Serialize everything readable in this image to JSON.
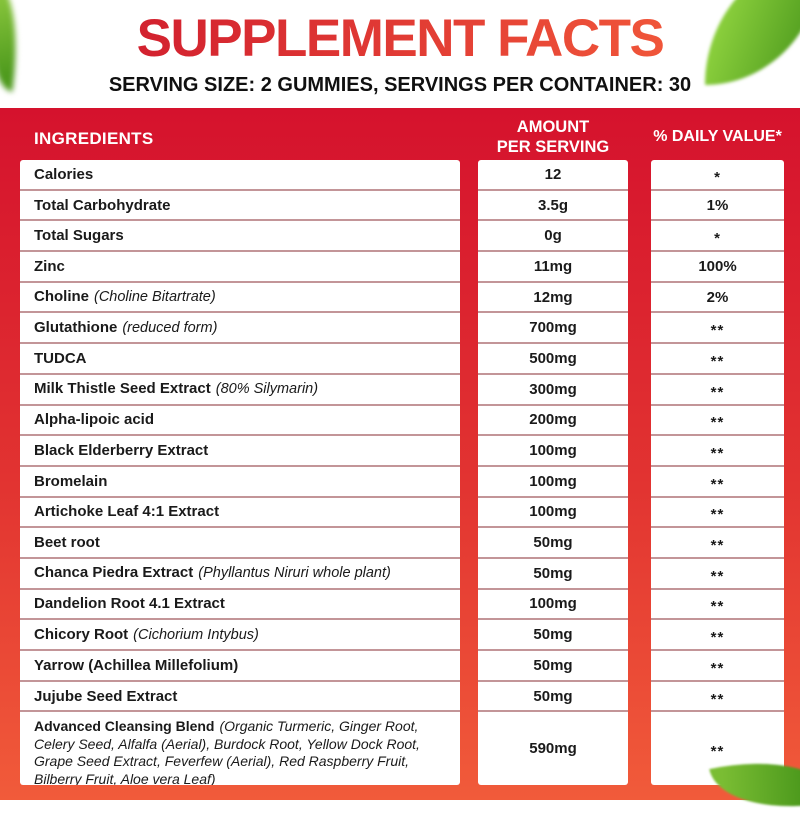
{
  "page": {
    "title": "SUPPLEMENT FACTS",
    "serving_line": "SERVING SIZE: 2 GUMMIES, SERVINGS PER CONTAINER: 30"
  },
  "colors": {
    "title_gradient_start": "#d01d2e",
    "title_gradient_end": "#f2593a",
    "table_gradient_top": "#d5122d",
    "table_gradient_bottom": "#f15b3a",
    "row_divider": "#c39598",
    "header_text": "#ffffff",
    "body_text": "#1a1a1a",
    "leaf_green": "#66b32e"
  },
  "decorations": {
    "leaves": [
      "top-left-leaf",
      "top-right-leaf",
      "bottom-right-leaf"
    ]
  },
  "table": {
    "headers": {
      "ingredients": "INGREDIENTS",
      "amount_line1": "AMOUNT",
      "amount_line2": "PER SERVING",
      "daily_value": "% DAILY VALUE*"
    },
    "rows": [
      {
        "name": "Calories",
        "note": "",
        "amount": "12",
        "dv": "*"
      },
      {
        "name": "Total Carbohydrate",
        "note": "",
        "amount": "3.5g",
        "dv": "1%"
      },
      {
        "name": "Total Sugars",
        "note": "",
        "amount": "0g",
        "dv": "*"
      },
      {
        "name": "Zinc",
        "note": "",
        "amount": "11mg",
        "dv": "100%"
      },
      {
        "name": "Choline",
        "note": "(Choline Bitartrate)",
        "amount": "12mg",
        "dv": "2%"
      },
      {
        "name": "Glutathione",
        "note": "(reduced form)",
        "amount": "700mg",
        "dv": "**"
      },
      {
        "name": "TUDCA",
        "note": "",
        "amount": "500mg",
        "dv": "**"
      },
      {
        "name": "Milk Thistle Seed Extract",
        "note": "(80% Silymarin)",
        "amount": "300mg",
        "dv": "**"
      },
      {
        "name": "Alpha-lipoic acid",
        "note": "",
        "amount": "200mg",
        "dv": "**"
      },
      {
        "name": "Black Elderberry Extract",
        "note": "",
        "amount": "100mg",
        "dv": "**"
      },
      {
        "name": "Bromelain",
        "note": "",
        "amount": "100mg",
        "dv": "**"
      },
      {
        "name": "Artichoke Leaf 4:1 Extract",
        "note": "",
        "amount": "100mg",
        "dv": "**"
      },
      {
        "name": "Beet root",
        "note": "",
        "amount": "50mg",
        "dv": "**"
      },
      {
        "name": "Chanca Piedra Extract",
        "note": "(Phyllantus Niruri whole plant)",
        "amount": "50mg",
        "dv": "**"
      },
      {
        "name": "Dandelion Root 4.1 Extract",
        "note": "",
        "amount": "100mg",
        "dv": "**"
      },
      {
        "name": "Chicory Root",
        "note": "(Cichorium Intybus)",
        "amount": "50mg",
        "dv": "**"
      },
      {
        "name": "Yarrow (Achillea Millefolium)",
        "note": "",
        "amount": "50mg",
        "dv": "**"
      },
      {
        "name": "Jujube Seed Extract",
        "note": "",
        "amount": "50mg",
        "dv": "**"
      },
      {
        "name": "Advanced Cleansing Blend",
        "note": "(Organic Turmeric, Ginger Root, Celery Seed, Alfalfa (Aerial), Burdock Root, Yellow Dock Root, Grape Seed Extract, Feverfew (Aerial), Red Raspberry Fruit, Bilberry Fruit, Aloe vera Leaf)",
        "amount": "590mg",
        "dv": "**",
        "tall": true
      }
    ]
  }
}
